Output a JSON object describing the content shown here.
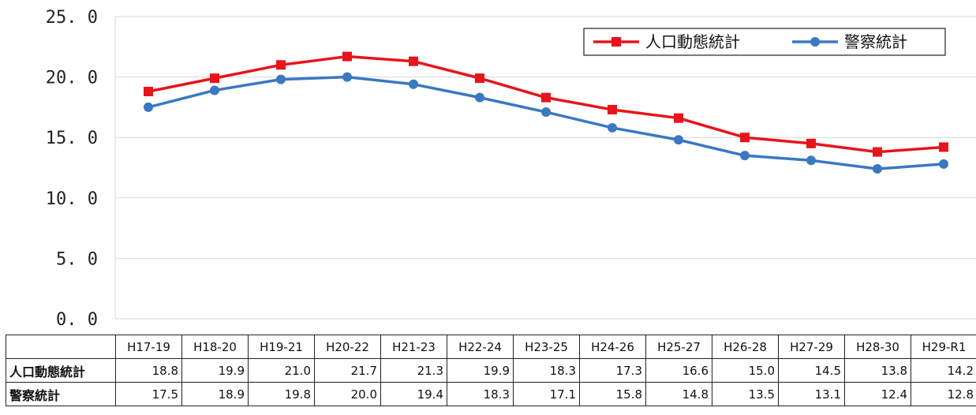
{
  "chart_data": {
    "type": "line",
    "categories": [
      "H17-19",
      "H18-20",
      "H19-21",
      "H20-22",
      "H21-23",
      "H22-24",
      "H23-25",
      "H24-26",
      "H25-27",
      "H26-28",
      "H27-29",
      "H28-30",
      "H29-R1"
    ],
    "series": [
      {
        "name": "人口動態統計",
        "color": "#e8141b",
        "marker": "square",
        "values": [
          18.8,
          19.9,
          21.0,
          21.7,
          21.3,
          19.9,
          18.3,
          17.3,
          16.6,
          15.0,
          14.5,
          13.8,
          14.2
        ]
      },
      {
        "name": "警察統計",
        "color": "#3a78c2",
        "marker": "circle",
        "values": [
          17.5,
          18.9,
          19.8,
          20.0,
          19.4,
          18.3,
          17.1,
          15.8,
          14.8,
          13.5,
          13.1,
          12.4,
          12.8
        ]
      }
    ],
    "ylim": [
      0,
      25
    ],
    "yticks": [
      "0. 0",
      "5. 0",
      "10. 0",
      "15. 0",
      "20. 0",
      "25. 0"
    ],
    "grid": true,
    "legend_position": "top-right"
  },
  "table": {
    "row_labels": [
      "人口動態統計",
      "警察統計"
    ],
    "rows": [
      [
        "18.8",
        "19.9",
        "21.0",
        "21.7",
        "21.3",
        "19.9",
        "18.3",
        "17.3",
        "16.6",
        "15.0",
        "14.5",
        "13.8",
        "14.2"
      ],
      [
        "17.5",
        "18.9",
        "19.8",
        "20.0",
        "19.4",
        "18.3",
        "17.1",
        "15.8",
        "14.8",
        "13.5",
        "13.1",
        "12.4",
        "12.8"
      ]
    ]
  }
}
